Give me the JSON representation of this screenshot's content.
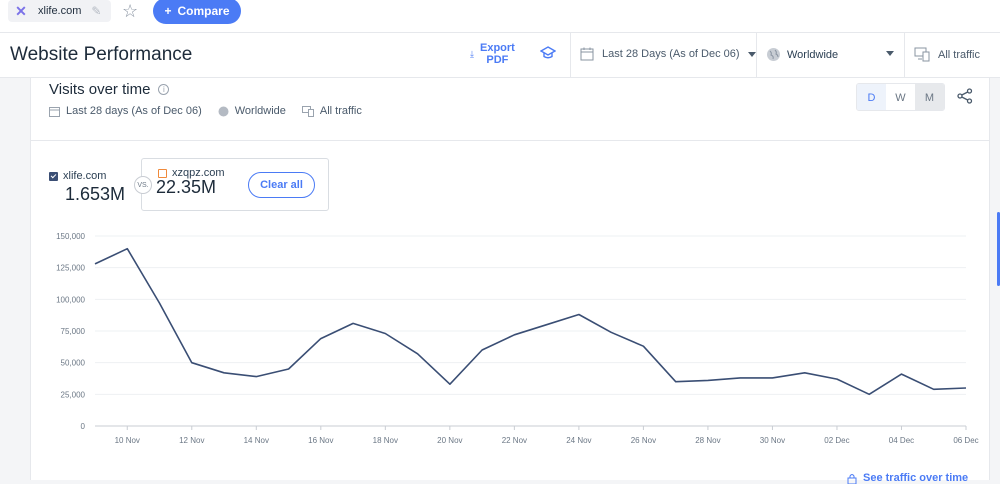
{
  "topbar": {
    "site_domain": "xlife.com",
    "compare_label": "Compare",
    "icons": [
      "close-x-icon",
      "pencil-icon",
      "star-icon",
      "plus-icon"
    ]
  },
  "header": {
    "title": "Website Performance",
    "export_label_1": "Export",
    "export_label_2": "PDF",
    "date_filter": "Last 28 Days (As of Dec 06)",
    "geo_filter": "Worldwide",
    "traffic_filter": "All traffic"
  },
  "card": {
    "title": "Visits over time",
    "subtitle_date": "Last 28 days (As of Dec 06)",
    "subtitle_geo": "Worldwide",
    "subtitle_traffic": "All traffic",
    "granularity": [
      "D",
      "W",
      "M"
    ],
    "granularity_selected": "D",
    "main_site": {
      "name": "xlife.com",
      "value": "1.653M",
      "checked": true,
      "color": "#3a4e74"
    },
    "vs_label": "VS.",
    "compare_site": {
      "name": "xzqpz.com",
      "value": "22.35M",
      "checked": false,
      "color": "#f08a3b"
    },
    "clear_all_label": "Clear all",
    "bottom_link": "See traffic over time"
  },
  "chart_data": {
    "type": "line",
    "x_tick_labels": [
      "10 Nov",
      "12 Nov",
      "14 Nov",
      "16 Nov",
      "18 Nov",
      "20 Nov",
      "22 Nov",
      "24 Nov",
      "26 Nov",
      "28 Nov",
      "30 Nov",
      "02 Dec",
      "04 Dec",
      "06 Dec"
    ],
    "x": [
      "09 Nov",
      "10 Nov",
      "11 Nov",
      "12 Nov",
      "13 Nov",
      "14 Nov",
      "15 Nov",
      "16 Nov",
      "17 Nov",
      "18 Nov",
      "19 Nov",
      "20 Nov",
      "21 Nov",
      "22 Nov",
      "23 Nov",
      "24 Nov",
      "25 Nov",
      "26 Nov",
      "27 Nov",
      "28 Nov",
      "29 Nov",
      "30 Nov",
      "01 Dec",
      "02 Dec",
      "03 Dec",
      "04 Dec",
      "05 Dec",
      "06 Dec"
    ],
    "series": [
      {
        "name": "xlife.com",
        "color": "#3a4e74",
        "values": [
          128000,
          140000,
          97000,
          50000,
          42000,
          39000,
          45000,
          69000,
          81000,
          73000,
          57000,
          33000,
          60000,
          72000,
          80000,
          88000,
          74000,
          63000,
          35000,
          36000,
          38000,
          38000,
          42000,
          37000,
          25000,
          41000,
          29000,
          30000
        ]
      }
    ],
    "yticks": [
      "150,000",
      "125,000",
      "100,000",
      "75,000",
      "50,000",
      "25,000",
      "0"
    ],
    "ylim": [
      0,
      150000
    ],
    "grid": true,
    "xlabel": "",
    "ylabel": ""
  }
}
